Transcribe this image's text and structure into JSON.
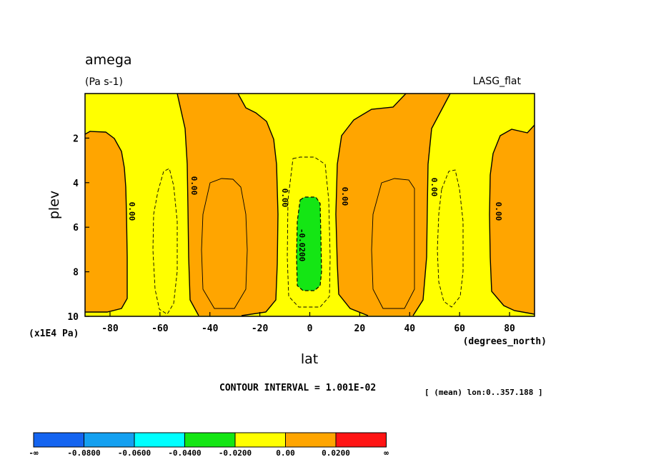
{
  "chart_data": {
    "type": "contour",
    "title": "amega",
    "units": "(Pa s-1)",
    "model": "LASG_flat",
    "xlabel": "lat",
    "xunits": "(degrees_north)",
    "ylabel": "plev",
    "yunits": "(x1E4 Pa)",
    "xlim": [
      -90,
      90
    ],
    "ylim": [
      10,
      0
    ],
    "xticks": [
      "-80",
      "-60",
      "-40",
      "-20",
      "0",
      "20",
      "40",
      "60",
      "80"
    ],
    "yticks": [
      "2",
      "4",
      "6",
      "8",
      "10"
    ],
    "contour_interval": "CONTOUR INTERVAL = 1.001E-02",
    "subset": "[ (mean) lon:0..357.188 ]",
    "contour_labels": [
      "0.00",
      "0.00",
      "0.00",
      "-0.0200",
      "0.00",
      "0.00",
      "0.00"
    ],
    "colorbar": {
      "labels": [
        "-∞",
        "-0.0800",
        "-0.0600",
        "-0.0400",
        "-0.0200",
        "0.00",
        "0.0200",
        "∞"
      ],
      "colors": [
        "#1464f0",
        "#14a0f0",
        "#00ffff",
        "#14e614",
        "#ffff00",
        "#ffa500",
        "#ff1414"
      ]
    },
    "fill_colors": {
      "positive": "#ffa500",
      "near_zero": "#ffff00",
      "negative": "#14e614"
    }
  }
}
